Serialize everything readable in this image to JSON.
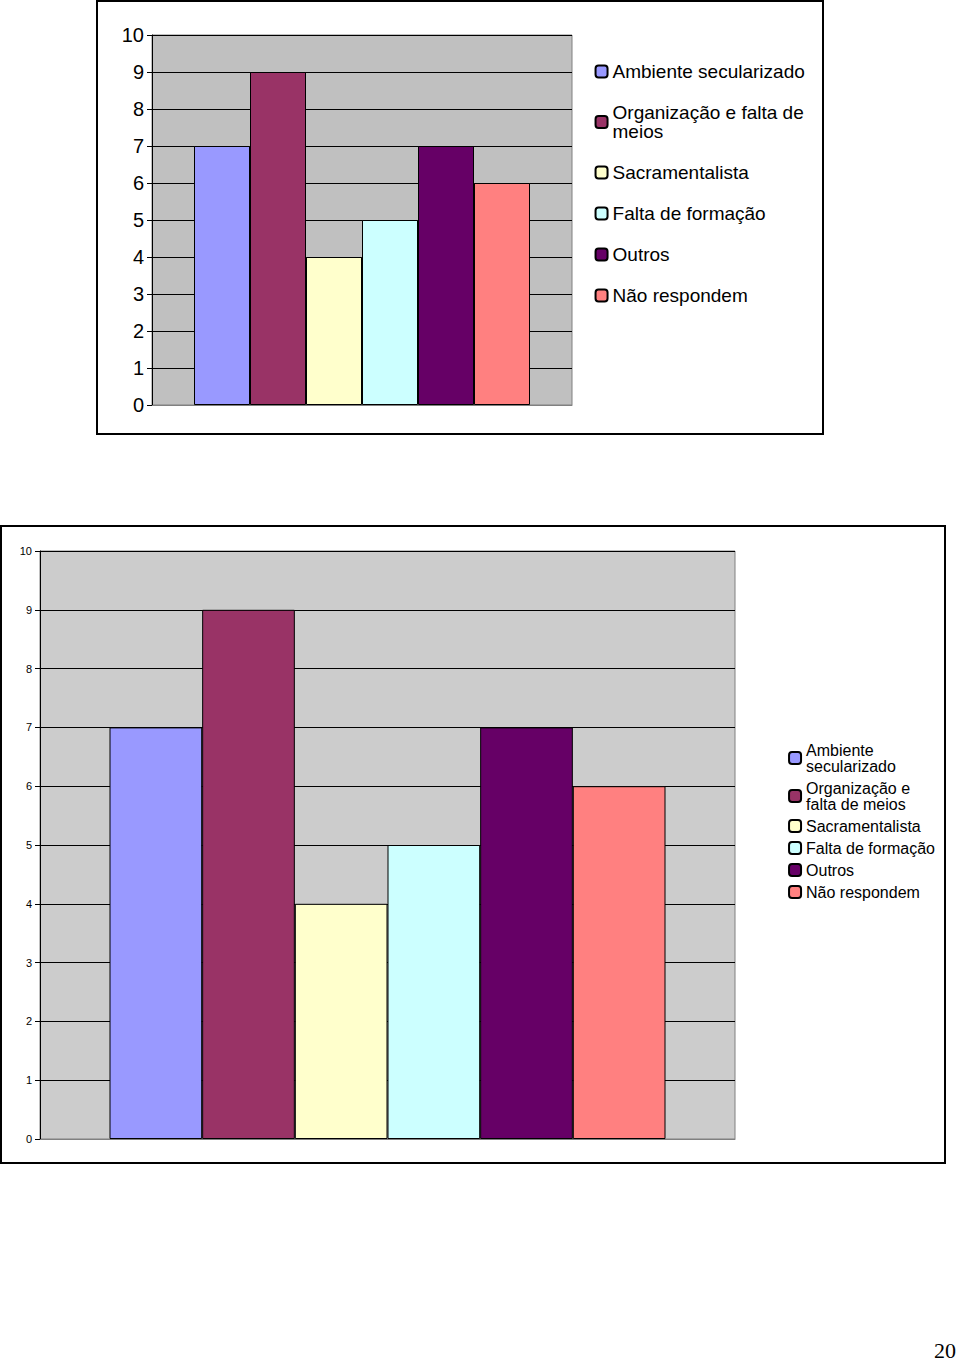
{
  "page_number": "20",
  "chart_data": [
    {
      "type": "bar",
      "categories": [
        null
      ],
      "series": [
        {
          "name": "Ambiente secularizado",
          "color": "#9999FF",
          "values": [
            7
          ]
        },
        {
          "name": "Organização e falta de meios",
          "color": "#993366",
          "values": [
            9
          ]
        },
        {
          "name": "Sacramentalista",
          "color": "#FFFFCC",
          "values": [
            4
          ]
        },
        {
          "name": "Falta de formação",
          "color": "#CCFFFF",
          "values": [
            5
          ]
        },
        {
          "name": "Outros",
          "color": "#660066",
          "values": [
            7
          ]
        },
        {
          "name": "Não respondem",
          "color": "#FF8080",
          "values": [
            6
          ]
        }
      ],
      "ylim": [
        0,
        10
      ],
      "yticks": [
        0,
        1,
        2,
        3,
        4,
        5,
        6,
        7,
        8,
        9,
        10
      ],
      "grid": true,
      "legend": "right"
    },
    {
      "type": "bar",
      "categories": [
        null
      ],
      "series": [
        {
          "name": "Ambiente secularizado",
          "color": "#9999FF",
          "values": [
            7
          ]
        },
        {
          "name": "Organização e falta de meios",
          "color": "#993366",
          "values": [
            9
          ]
        },
        {
          "name": "Sacramentalista",
          "color": "#FFFFCC",
          "values": [
            4
          ]
        },
        {
          "name": "Falta de formação",
          "color": "#CCFFFF",
          "values": [
            5
          ]
        },
        {
          "name": "Outros",
          "color": "#660066",
          "values": [
            7
          ]
        },
        {
          "name": "Não respondem",
          "color": "#FF8080",
          "values": [
            6
          ]
        }
      ],
      "ylim": [
        0,
        10
      ],
      "yticks": [
        0,
        1,
        2,
        3,
        4,
        5,
        6,
        7,
        8,
        9,
        10
      ],
      "grid": true,
      "legend": "right"
    }
  ]
}
